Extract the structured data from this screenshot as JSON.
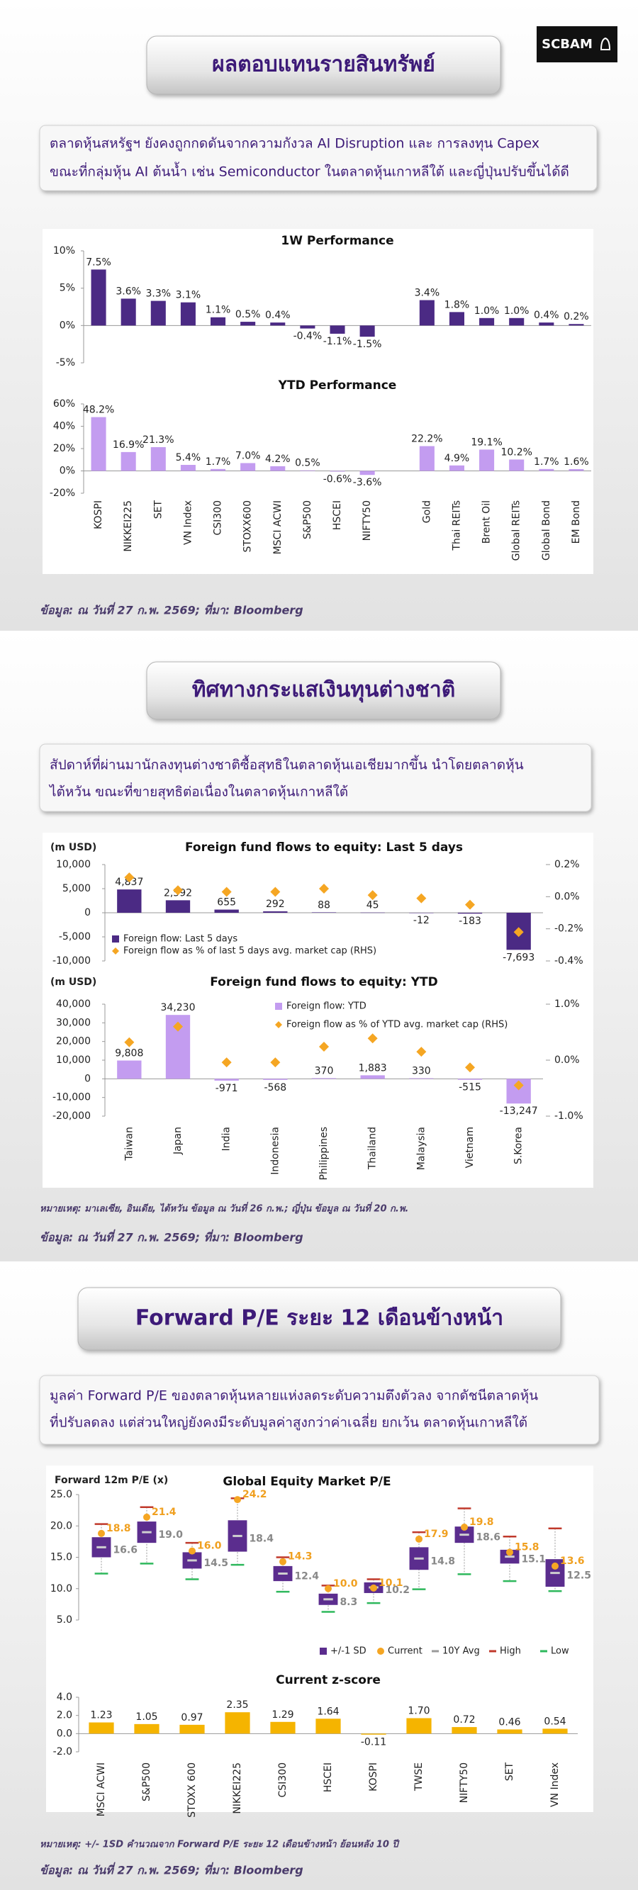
{
  "logo": "SCBAM",
  "sections": [
    {
      "title": "ผลตอบแทนรายสินทรัพย์",
      "text": [
        "ตลาดหุ้นสหรัฐฯ ยังคงถูกกดดันจากความกังวล AI Disruption และ การลงทุน Capex",
        "ขณะที่กลุ่มหุ้น AI ต้นน้ำ เช่น Semiconductor ในตลาดหุ้นเกาหลีใต้ และญี่ปุ่นปรับขึ้นได้ดี"
      ],
      "source": "ข้อมูล: ณ วันที่ 27 ก.พ. 2569; ที่มา: Bloomberg"
    },
    {
      "title": "ทิศทางกระแสเงินทุนต่างชาติ",
      "text": [
        "สัปดาห์ที่ผ่านมานักลงทุนต่างชาติซื้อสุทธิในตลาดหุ้นเอเชียมากขึ้น นำโดยตลาดหุ้น",
        "ไต้หวัน ขณะที่ขายสุทธิต่อเนื่องในตลาดหุ้นเกาหลีใต้"
      ],
      "note": "หมายเหตุ: มาเลเซีย, อินเดีย, ไต้หวัน ข้อมูล ณ วันที่ 26 ก.พ.; ญี่ปุ่น ข้อมูล ณ วันที่ 20 ก.พ.",
      "source": "ข้อมูล: ณ วันที่ 27 ก.พ. 2569; ที่มา: Bloomberg"
    },
    {
      "title": "Forward P/E ระยะ 12 เดือนข้างหน้า",
      "text": [
        "มูลค่า Forward P/E ของตลาดหุ้นหลายแห่งลดระดับความตึงตัวลง จากดัชนีตลาดหุ้น",
        "ที่ปรับลดลง แต่ส่วนใหญ่ยังคงมีระดับมูลค่าสูงกว่าค่าเฉลี่ย ยกเว้น ตลาดหุ้นเกาหลีใต้"
      ],
      "note": "หมายเหตุ: +/- 1SD คำนวณจาก Forward P/E ระยะ 12 เดือนข้างหน้า ย้อนหลัง 10 ปี",
      "source": "ข้อมูล: ณ วันที่ 27 ก.พ. 2569; ที่มา: Bloomberg"
    }
  ],
  "chart_data": [
    {
      "type": "bar",
      "title": "1W Performance",
      "color": "#4b2a84",
      "values": [
        7.5,
        3.6,
        3.3,
        3.1,
        1.1,
        0.5,
        0.4,
        -0.4,
        -1.1,
        -1.5,
        null,
        3.4,
        1.8,
        1.0,
        1.0,
        0.4,
        0.2
      ],
      "value_labels": [
        "7.5%",
        "3.6%",
        "3.3%",
        "3.1%",
        "1.1%",
        "0.5%",
        "0.4%",
        "-0.4%",
        "-1.1%",
        "-1.5%",
        null,
        "3.4%",
        "1.8%",
        "1.0%",
        "1.0%",
        "0.4%",
        "0.2%"
      ],
      "ylim": [
        -5,
        10
      ],
      "yticks": [
        {
          "value": -5,
          "label": "-5%"
        },
        {
          "value": 0,
          "label": "0%"
        },
        {
          "value": 5,
          "label": "5%"
        },
        {
          "value": 10,
          "label": "10%"
        }
      ]
    },
    {
      "type": "bar",
      "title": "YTD Performance",
      "color": "#c39cf0",
      "categories": [
        "KOSPI",
        "NIKKEI225",
        "SET",
        "VN Index",
        "CSI300",
        "STOXX600",
        "MSCI ACWI",
        "S&P500",
        "HSCEI",
        "NIFTY50",
        null,
        "Gold",
        "Thai REITs",
        "Brent Oil",
        "Global REITs",
        "Global Bond",
        "EM Bond"
      ],
      "values": [
        48.2,
        16.9,
        21.3,
        5.4,
        1.7,
        7.0,
        4.2,
        0.5,
        -0.6,
        -3.6,
        null,
        22.2,
        4.9,
        19.1,
        10.2,
        1.7,
        1.6
      ],
      "value_labels": [
        "48.2%",
        "16.9%",
        "21.3%",
        "5.4%",
        "1.7%",
        "7.0%",
        "4.2%",
        "0.5%",
        "-0.6%",
        "-3.6%",
        null,
        "22.2%",
        "4.9%",
        "19.1%",
        "10.2%",
        "1.7%",
        "1.6%"
      ],
      "ylim": [
        -20,
        60
      ],
      "yticks": [
        {
          "value": -20,
          "label": "-20%"
        },
        {
          "value": 0,
          "label": "0%"
        },
        {
          "value": 20,
          "label": "20%"
        },
        {
          "value": 40,
          "label": "40%"
        },
        {
          "value": 60,
          "label": "60%"
        }
      ]
    },
    {
      "type": "bar",
      "title": "Foreign fund flows to equity: Last 5 days",
      "ylabel": "(m USD)",
      "legend": "lower left",
      "ylim": [
        -10000,
        10000
      ],
      "yticks": [
        {
          "value": -10000,
          "label": "-10,000"
        },
        {
          "value": -5000,
          "label": "-5,000"
        },
        0,
        {
          "value": 5000,
          "label": "5,000"
        },
        {
          "value": 10000,
          "label": "10,000"
        }
      ],
      "y2lim": [
        -0.4,
        0.2
      ],
      "y2ticks": [
        {
          "value": -0.4,
          "label": "-0.4%"
        },
        {
          "value": -0.2,
          "label": "-0.2%"
        },
        {
          "value": 0,
          "label": "0.0%"
        },
        {
          "value": 0.2,
          "label": "0.2%"
        }
      ],
      "series": [
        {
          "name": "Foreign flow: Last 5 days",
          "color": "#4b2a84",
          "values": [
            4837,
            2592,
            655,
            292,
            88,
            45,
            -12,
            -183,
            -7693
          ],
          "value_labels": [
            "4,837",
            "2,592",
            "655",
            "292",
            "88",
            "45",
            "-12",
            "-183",
            "-7,693"
          ]
        },
        {
          "name": "Foreign flow as % of last 5 days avg. market cap (RHS)",
          "color": "#f5a623",
          "axis": "y2",
          "values": [
            0.12,
            0.04,
            0.03,
            0.03,
            0.05,
            0.01,
            -0.01,
            -0.05,
            -0.22
          ]
        }
      ]
    },
    {
      "type": "bar",
      "title": "Foreign fund flows to equity: YTD",
      "ylabel": "(m USD)",
      "legend": "upper center",
      "categories": [
        "Taiwan",
        "Japan",
        "India",
        "Indonesia",
        "Philippines",
        "Thailand",
        "Malaysia",
        "Vietnam",
        "S.Korea"
      ],
      "ylim": [
        -20000,
        40000
      ],
      "yticks": [
        {
          "value": -20000,
          "label": "-20,000"
        },
        {
          "value": -10000,
          "label": "-10,000"
        },
        0,
        {
          "value": 10000,
          "label": "10,000"
        },
        {
          "value": 20000,
          "label": "20,000"
        },
        {
          "value": 30000,
          "label": "30,000"
        },
        {
          "value": 40000,
          "label": "40,000"
        }
      ],
      "y2lim": [
        -1,
        1
      ],
      "y2ticks": [
        {
          "value": -1,
          "label": "-1.0%"
        },
        {
          "value": 0,
          "label": "0.0%"
        },
        {
          "value": 1,
          "label": "1.0%"
        }
      ],
      "series": [
        {
          "name": "Foreign flow: YTD",
          "color": "#c39cf0",
          "values": [
            9808,
            34230,
            -971,
            -568,
            370,
            1883,
            330,
            -515,
            -13247
          ],
          "value_labels": [
            "9,808",
            "34,230",
            "-971",
            "-568",
            "370",
            "1,883",
            "330",
            "-515",
            "-13,247"
          ]
        },
        {
          "name": "Foreign flow as % of YTD avg. market cap (RHS)",
          "color": "#f5a623",
          "axis": "y2",
          "values": [
            0.32,
            0.6,
            -0.04,
            -0.04,
            0.24,
            0.39,
            0.15,
            -0.13,
            -0.45
          ]
        }
      ]
    },
    {
      "type": "range",
      "title": "Global Equity Market P/E",
      "ylabel": "Forward 12m P/E (x)",
      "legend": "lower right",
      "ylim": [
        5,
        25
      ],
      "yticks": [
        {
          "value": 5,
          "label": "5.0"
        },
        {
          "value": 10,
          "label": "10.0"
        },
        {
          "value": 15,
          "label": "15.0"
        },
        {
          "value": 20,
          "label": "20.0"
        },
        {
          "value": 25,
          "label": "25.0"
        }
      ],
      "series": [
        {
          "name": "+/-1 SD",
          "color": "#5b2d8e",
          "lower": [
            15.0,
            17.3,
            13.2,
            15.9,
            11.2,
            7.4,
            9.3,
            13.0,
            17.3,
            14.0,
            10.3
          ],
          "upper": [
            18.2,
            20.7,
            15.8,
            20.9,
            13.6,
            9.2,
            11.0,
            16.6,
            19.9,
            16.2,
            14.7
          ]
        },
        {
          "name": "Current",
          "color": "#f5a623",
          "values": [
            18.8,
            21.4,
            16.0,
            24.2,
            14.3,
            10.0,
            10.1,
            17.9,
            19.8,
            15.8,
            13.6
          ],
          "value_labels": [
            "18.8",
            "21.4",
            "16.0",
            "24.2",
            "14.3",
            "10.0",
            "10.1",
            "17.9",
            "19.8",
            "15.8",
            "13.6"
          ]
        },
        {
          "name": "10Y Avg",
          "color": "#9a9a9a",
          "values": [
            16.6,
            19.0,
            14.5,
            18.4,
            12.4,
            8.3,
            10.2,
            14.8,
            18.6,
            15.1,
            12.5
          ],
          "value_labels": [
            "16.6",
            "19.0",
            "14.5",
            "18.4",
            "12.4",
            "8.3",
            "10.2",
            "14.8",
            "18.6",
            "15.1",
            "12.5"
          ]
        },
        {
          "name": "High",
          "color": "#c0392b",
          "values": [
            20.3,
            23.0,
            17.3,
            24.4,
            15.0,
            10.5,
            11.5,
            19.0,
            22.8,
            18.3,
            19.6
          ]
        },
        {
          "name": "Low",
          "color": "#2eb85c",
          "values": [
            12.4,
            14.0,
            11.5,
            13.8,
            9.5,
            6.3,
            7.7,
            9.9,
            12.3,
            11.2,
            9.6
          ]
        }
      ]
    },
    {
      "type": "bar",
      "title": "Current z-score",
      "color": "#f5b400",
      "categories": [
        "MSCI ACWI",
        "S&P500",
        "STOXX 600",
        "NIKKEI225",
        "CSI300",
        "HSCEI",
        "KOSPI",
        "TWSE",
        "NIFTY50",
        "SET",
        "VN Index"
      ],
      "values": [
        1.23,
        1.05,
        0.97,
        2.35,
        1.29,
        1.64,
        -0.11,
        1.7,
        0.72,
        0.46,
        0.54
      ],
      "value_labels": [
        "1.23",
        "1.05",
        "0.97",
        "2.35",
        "1.29",
        "1.64",
        "-0.11",
        "1.70",
        "0.72",
        "0.46",
        "0.54"
      ],
      "ylim": [
        -2,
        4
      ],
      "yticks": [
        {
          "value": -2,
          "label": "-2.0"
        },
        {
          "value": 0,
          "label": "0.0"
        },
        {
          "value": 2,
          "label": "2.0"
        },
        {
          "value": 4,
          "label": "4.0"
        }
      ]
    }
  ]
}
